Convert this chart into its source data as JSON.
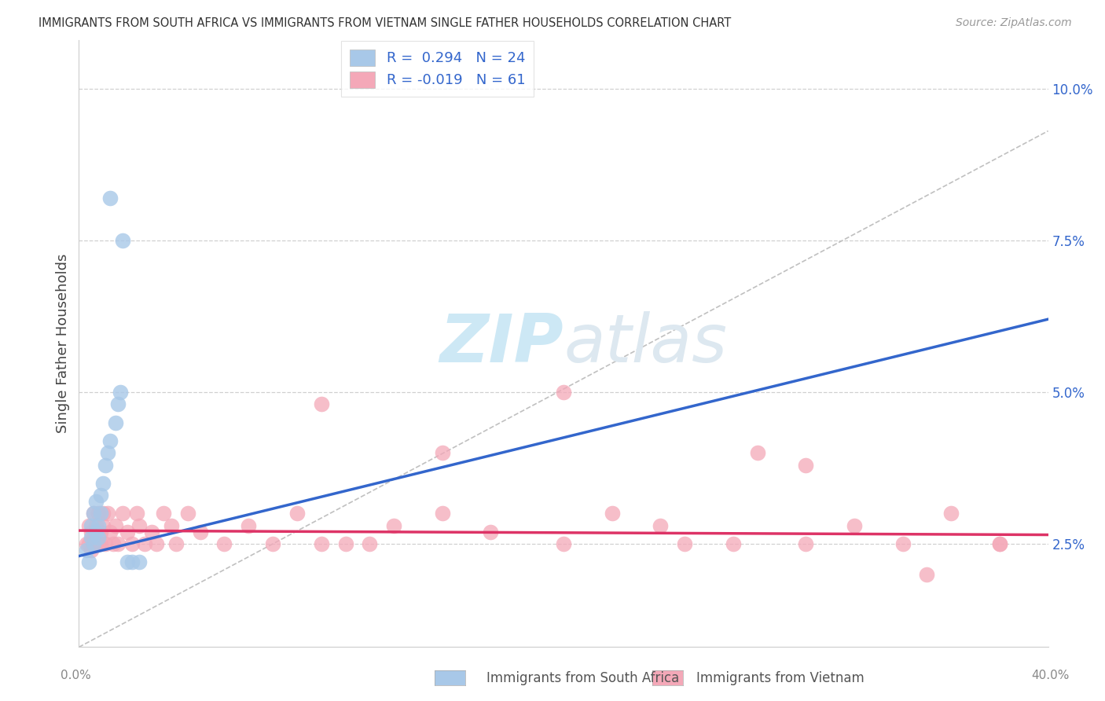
{
  "title": "IMMIGRANTS FROM SOUTH AFRICA VS IMMIGRANTS FROM VIETNAM SINGLE FATHER HOUSEHOLDS CORRELATION CHART",
  "source": "Source: ZipAtlas.com",
  "ylabel": "Single Father Households",
  "legend_blue_label": "Immigrants from South Africa",
  "legend_pink_label": "Immigrants from Vietnam",
  "y_ticks": [
    "2.5%",
    "5.0%",
    "7.5%",
    "10.0%"
  ],
  "y_tick_values": [
    0.025,
    0.05,
    0.075,
    0.1
  ],
  "x_lim": [
    0.0,
    0.4
  ],
  "y_lim": [
    0.008,
    0.108
  ],
  "blue_scatter_color": "#a8c8e8",
  "blue_line_color": "#3366cc",
  "pink_scatter_color": "#f4a8b8",
  "pink_line_color": "#dd3366",
  "dashed_line_color": "#c0c0c0",
  "watermark_color": "#cde8f5",
  "grid_color": "#d0d0d0",
  "background_color": "#ffffff",
  "title_color": "#333333",
  "source_color": "#999999",
  "tick_color": "#3366cc",
  "xtick_color": "#888888",
  "legend_text_color": "#3366cc",
  "sa_x": [
    0.003,
    0.004,
    0.005,
    0.005,
    0.006,
    0.006,
    0.007,
    0.007,
    0.008,
    0.008,
    0.009,
    0.009,
    0.01,
    0.011,
    0.012,
    0.013,
    0.015,
    0.016,
    0.017,
    0.02,
    0.022,
    0.025,
    0.013,
    0.018
  ],
  "sa_y": [
    0.024,
    0.022,
    0.026,
    0.028,
    0.025,
    0.03,
    0.027,
    0.032,
    0.028,
    0.026,
    0.03,
    0.033,
    0.035,
    0.038,
    0.04,
    0.042,
    0.045,
    0.048,
    0.05,
    0.022,
    0.022,
    0.022,
    0.082,
    0.075
  ],
  "vn_x": [
    0.003,
    0.004,
    0.004,
    0.005,
    0.005,
    0.006,
    0.006,
    0.007,
    0.007,
    0.008,
    0.008,
    0.009,
    0.009,
    0.01,
    0.01,
    0.011,
    0.012,
    0.013,
    0.014,
    0.015,
    0.016,
    0.018,
    0.02,
    0.022,
    0.024,
    0.025,
    0.027,
    0.03,
    0.032,
    0.035,
    0.038,
    0.04,
    0.045,
    0.05,
    0.06,
    0.07,
    0.08,
    0.09,
    0.1,
    0.11,
    0.12,
    0.13,
    0.15,
    0.17,
    0.2,
    0.22,
    0.24,
    0.27,
    0.3,
    0.32,
    0.34,
    0.36,
    0.38,
    0.15,
    0.1,
    0.2,
    0.25,
    0.3,
    0.35,
    0.38,
    0.28
  ],
  "vn_y": [
    0.025,
    0.028,
    0.025,
    0.027,
    0.024,
    0.026,
    0.03,
    0.025,
    0.028,
    0.025,
    0.03,
    0.027,
    0.025,
    0.028,
    0.03,
    0.025,
    0.03,
    0.027,
    0.025,
    0.028,
    0.025,
    0.03,
    0.027,
    0.025,
    0.03,
    0.028,
    0.025,
    0.027,
    0.025,
    0.03,
    0.028,
    0.025,
    0.03,
    0.027,
    0.025,
    0.028,
    0.025,
    0.03,
    0.025,
    0.025,
    0.025,
    0.028,
    0.03,
    0.027,
    0.025,
    0.03,
    0.028,
    0.025,
    0.025,
    0.028,
    0.025,
    0.03,
    0.025,
    0.04,
    0.048,
    0.05,
    0.025,
    0.038,
    0.02,
    0.025,
    0.04
  ],
  "blue_line_x0": 0.0,
  "blue_line_y0": 0.023,
  "blue_line_x1": 0.4,
  "blue_line_y1": 0.062,
  "pink_line_x0": 0.0,
  "pink_line_y0": 0.0272,
  "pink_line_x1": 0.4,
  "pink_line_y1": 0.0265,
  "dash_line_x0": 0.0,
  "dash_line_y0": 0.008,
  "dash_line_x1": 0.4,
  "dash_line_y1": 0.093
}
